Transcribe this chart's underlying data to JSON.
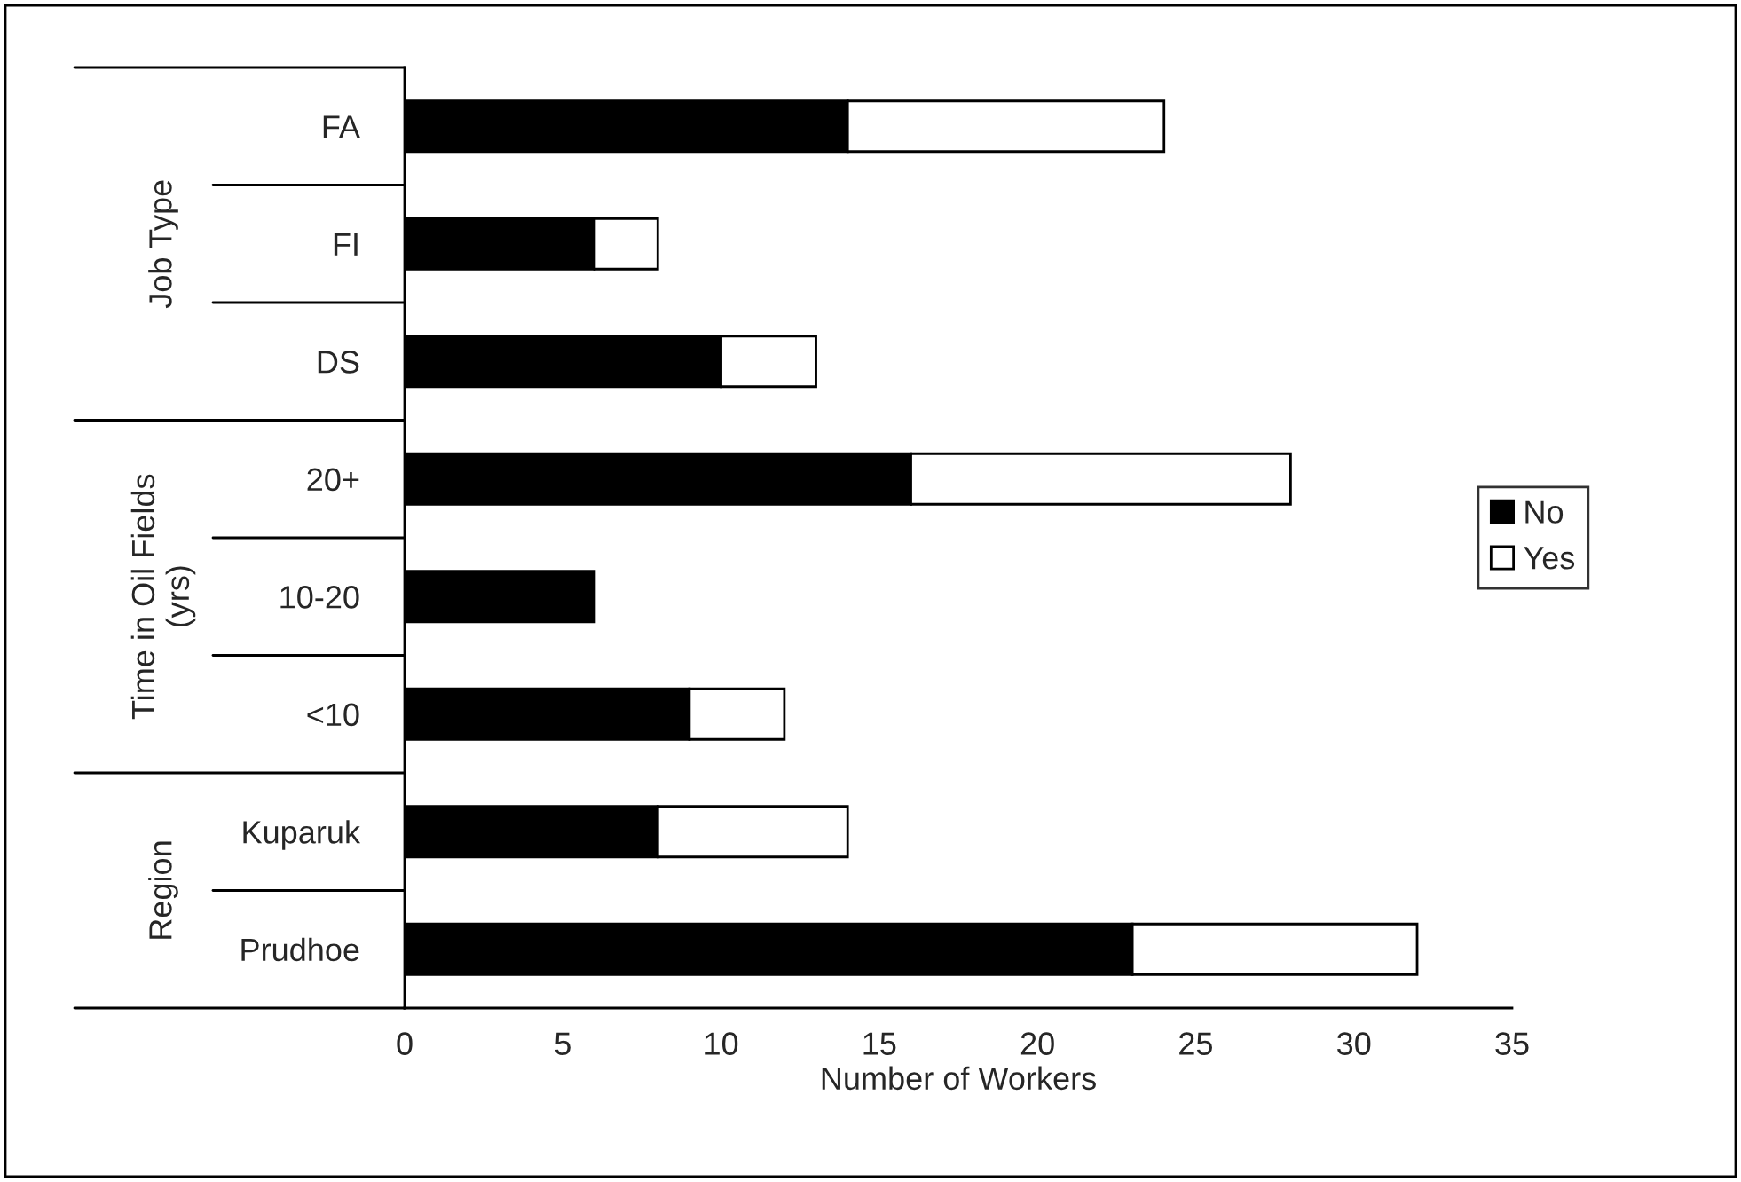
{
  "chart_data": {
    "type": "bar",
    "orientation": "horizontal",
    "stacked": true,
    "categories": [
      "FA",
      "FI",
      "DS",
      "20+",
      "10-20",
      "<10",
      "Kuparuk",
      "Prudhoe"
    ],
    "series": [
      {
        "name": "No",
        "color": "#000000",
        "values": [
          14,
          6,
          10,
          16,
          6,
          9,
          8,
          23
        ]
      },
      {
        "name": "Yes",
        "color": "#ffffff",
        "values": [
          10,
          2,
          3,
          12,
          null,
          3,
          6,
          9
        ]
      }
    ],
    "xlabel": "Number of Workers",
    "xlim": [
      0,
      35
    ],
    "xticks": [
      0,
      5,
      10,
      15,
      20,
      25,
      30,
      35
    ],
    "annotations": [
      "Job Type",
      "Time in Oil Fields\n(yrs)",
      "Region"
    ],
    "legend": "right",
    "grid": false
  }
}
